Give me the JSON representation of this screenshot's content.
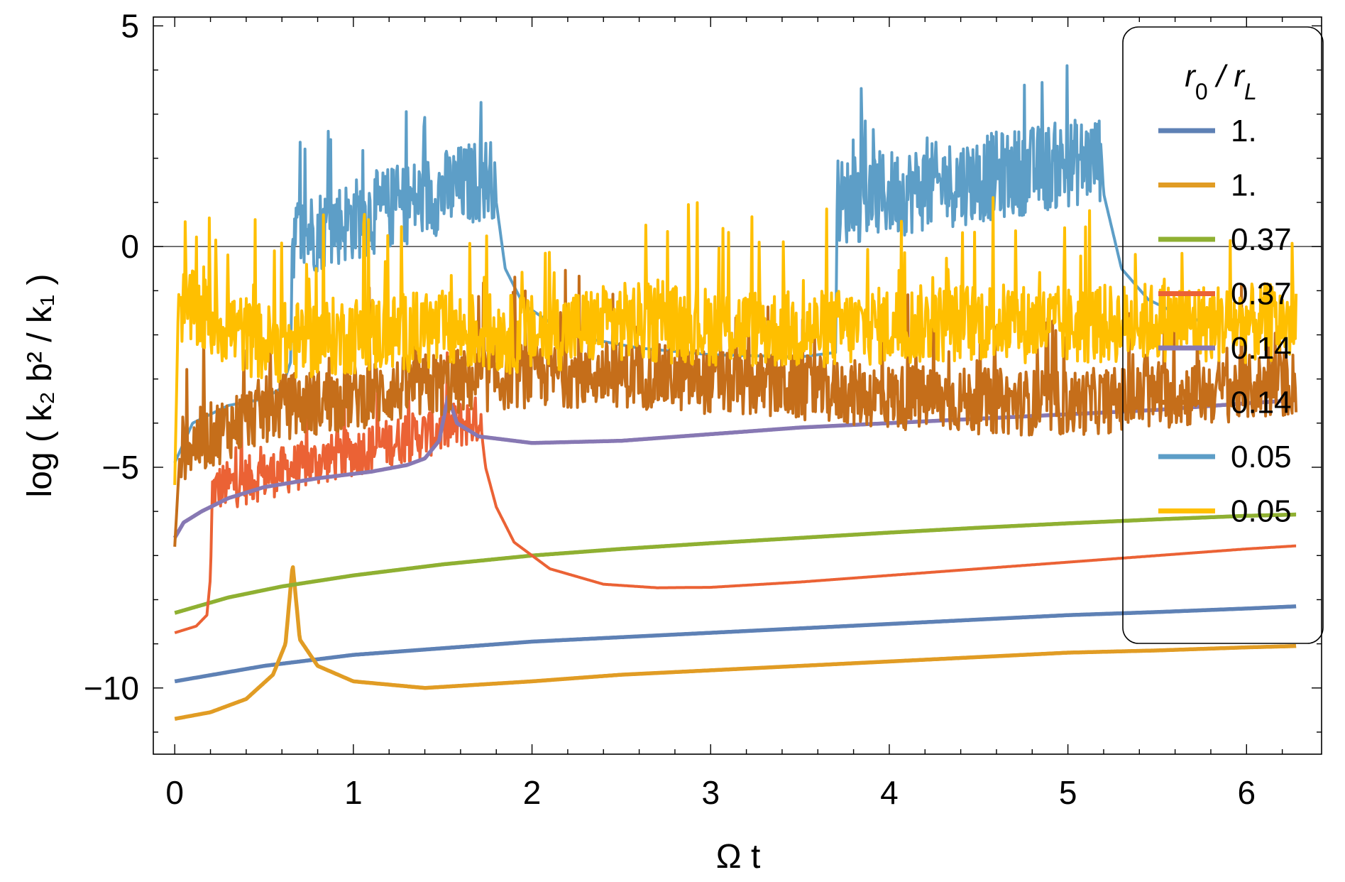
{
  "chart_data": {
    "type": "line",
    "title": "",
    "xlabel": "Ω t",
    "ylabel": "log ( k₂ b² / k₁ )",
    "xlim": [
      -0.12,
      6.42
    ],
    "ylim": [
      -11.5,
      5.2
    ],
    "x_ticks": [
      0,
      1,
      2,
      3,
      4,
      5,
      6
    ],
    "x_tick_labels": [
      "0",
      "1",
      "2",
      "3",
      "4",
      "5",
      "6"
    ],
    "y_ticks": [
      5,
      0,
      -5,
      -10
    ],
    "y_tick_labels": [
      "5",
      "0",
      "−5",
      "−10"
    ],
    "zero_line": true,
    "legend": {
      "title_main": "r",
      "title_sub1": "0",
      "title_sep": " / r",
      "title_sub2": "L",
      "position": "right",
      "entries": [
        {
          "label": "1.",
          "color": "#5E81B5"
        },
        {
          "label": "1.",
          "color": "#E19C24"
        },
        {
          "label": "0.37",
          "color": "#8FB032"
        },
        {
          "label": "0.37",
          "color": "#EB6235"
        },
        {
          "label": "0.14",
          "color": "#8778B3"
        },
        {
          "label": "0.14",
          "color": "#C56E1A"
        },
        {
          "label": "0.05",
          "color": "#5D9EC7"
        },
        {
          "label": "0.05",
          "color": "#FFBF00"
        }
      ]
    },
    "series": [
      {
        "name": "r0/rL = 1. (a)",
        "color": "#5E81B5",
        "kind": "smooth",
        "points": [
          [
            0,
            -9.85
          ],
          [
            0.5,
            -9.5
          ],
          [
            1,
            -9.25
          ],
          [
            1.5,
            -9.1
          ],
          [
            2,
            -8.95
          ],
          [
            2.5,
            -8.85
          ],
          [
            3,
            -8.75
          ],
          [
            3.5,
            -8.65
          ],
          [
            4,
            -8.55
          ],
          [
            4.5,
            -8.45
          ],
          [
            5,
            -8.35
          ],
          [
            5.5,
            -8.28
          ],
          [
            6,
            -8.2
          ],
          [
            6.28,
            -8.15
          ]
        ]
      },
      {
        "name": "r0/rL = 1. (b)",
        "color": "#E19C24",
        "kind": "smooth",
        "points": [
          [
            0,
            -10.7
          ],
          [
            0.2,
            -10.55
          ],
          [
            0.4,
            -10.25
          ],
          [
            0.55,
            -9.7
          ],
          [
            0.62,
            -9.0
          ],
          [
            0.66,
            -7.2
          ],
          [
            0.7,
            -8.9
          ],
          [
            0.8,
            -9.5
          ],
          [
            1,
            -9.85
          ],
          [
            1.4,
            -10.0
          ],
          [
            2,
            -9.85
          ],
          [
            2.5,
            -9.7
          ],
          [
            3,
            -9.6
          ],
          [
            3.5,
            -9.5
          ],
          [
            4,
            -9.4
          ],
          [
            4.5,
            -9.3
          ],
          [
            5,
            -9.2
          ],
          [
            5.5,
            -9.15
          ],
          [
            6,
            -9.08
          ],
          [
            6.28,
            -9.05
          ]
        ]
      },
      {
        "name": "r0/rL = 0.37 (a)",
        "color": "#8FB032",
        "kind": "smooth",
        "points": [
          [
            0,
            -8.3
          ],
          [
            0.3,
            -7.95
          ],
          [
            0.6,
            -7.7
          ],
          [
            1,
            -7.45
          ],
          [
            1.5,
            -7.2
          ],
          [
            2,
            -7.0
          ],
          [
            2.5,
            -6.85
          ],
          [
            3,
            -6.72
          ],
          [
            3.5,
            -6.6
          ],
          [
            4,
            -6.48
          ],
          [
            4.5,
            -6.37
          ],
          [
            5,
            -6.27
          ],
          [
            5.5,
            -6.18
          ],
          [
            6,
            -6.1
          ],
          [
            6.28,
            -6.07
          ]
        ]
      },
      {
        "name": "r0/rL = 0.37 (b)",
        "color": "#EB6235",
        "kind": "mixed",
        "points": [
          [
            0,
            -8.75
          ],
          [
            0.12,
            -8.6
          ],
          [
            0.18,
            -8.35
          ],
          [
            0.2,
            -7.5
          ],
          [
            0.21,
            -5.6
          ],
          [
            1.1,
            -4.0
          ],
          [
            1.7,
            -3.6
          ],
          [
            1.74,
            -5.0
          ],
          [
            1.8,
            -5.9
          ],
          [
            1.9,
            -6.7
          ],
          [
            2.1,
            -7.3
          ],
          [
            2.4,
            -7.65
          ],
          [
            2.7,
            -7.73
          ],
          [
            3,
            -7.72
          ],
          [
            3.5,
            -7.6
          ],
          [
            4,
            -7.45
          ],
          [
            4.5,
            -7.3
          ],
          [
            5,
            -7.15
          ],
          [
            5.5,
            -7.0
          ],
          [
            6,
            -6.85
          ],
          [
            6.28,
            -6.78
          ]
        ],
        "noise": {
          "from": 0.21,
          "to": 1.72,
          "start": -5.5,
          "end": -3.9,
          "amp": 0.55
        }
      },
      {
        "name": "r0/rL = 0.14 (a)",
        "color": "#8778B3",
        "kind": "smooth",
        "points": [
          [
            0,
            -6.6
          ],
          [
            0.05,
            -6.25
          ],
          [
            0.15,
            -6.0
          ],
          [
            0.3,
            -5.7
          ],
          [
            0.5,
            -5.45
          ],
          [
            0.8,
            -5.25
          ],
          [
            1.1,
            -5.1
          ],
          [
            1.3,
            -4.95
          ],
          [
            1.4,
            -4.8
          ],
          [
            1.48,
            -4.4
          ],
          [
            1.53,
            -3.4
          ],
          [
            1.58,
            -4.0
          ],
          [
            1.7,
            -4.3
          ],
          [
            2,
            -4.45
          ],
          [
            2.5,
            -4.4
          ],
          [
            3,
            -4.25
          ],
          [
            3.5,
            -4.1
          ],
          [
            4,
            -4.0
          ],
          [
            4.5,
            -3.9
          ],
          [
            5,
            -3.8
          ],
          [
            5.5,
            -3.7
          ],
          [
            6,
            -3.55
          ],
          [
            6.28,
            -3.48
          ]
        ]
      },
      {
        "name": "r0/rL = 0.14 (b)",
        "color": "#C56E1A",
        "kind": "noisy",
        "points": [
          [
            0,
            -6.8
          ],
          [
            0.03,
            -4.6
          ],
          [
            0.5,
            -3.7
          ],
          [
            1,
            -3.4
          ],
          [
            1.5,
            -3.1
          ],
          [
            2,
            -2.9
          ],
          [
            2.5,
            -2.9
          ],
          [
            3,
            -3.05
          ],
          [
            3.5,
            -3.2
          ],
          [
            4,
            -3.4
          ],
          [
            4.5,
            -3.5
          ],
          [
            5,
            -3.55
          ],
          [
            5.5,
            -3.4
          ],
          [
            6,
            -3.2
          ],
          [
            6.28,
            -3.1
          ]
        ],
        "noise": {
          "from": 0.03,
          "to": 6.28,
          "amp": 0.75
        }
      },
      {
        "name": "r0/rL = 0.05 (a)",
        "color": "#5D9EC7",
        "kind": "mixed",
        "points": [
          [
            0,
            -4.9
          ],
          [
            0.1,
            -4.0
          ],
          [
            0.3,
            -3.6
          ],
          [
            0.5,
            -3.45
          ],
          [
            0.6,
            -3.2
          ],
          [
            0.65,
            -2.6
          ],
          [
            0.66,
            1.0
          ],
          [
            1.79,
            2.0
          ],
          [
            1.8,
            1.0
          ],
          [
            1.85,
            -0.5
          ],
          [
            1.95,
            -1.3
          ],
          [
            2.2,
            -2.0
          ],
          [
            2.6,
            -2.3
          ],
          [
            3,
            -2.45
          ],
          [
            3.5,
            -2.5
          ],
          [
            3.7,
            -2.4
          ],
          [
            3.71,
            1.6
          ],
          [
            5.18,
            2.6
          ],
          [
            5.2,
            1.2
          ],
          [
            5.3,
            -0.5
          ],
          [
            5.45,
            -1.2
          ],
          [
            5.6,
            -1.5
          ],
          [
            5.75,
            -1.7
          ]
        ],
        "noise": [
          {
            "from": 0.66,
            "to": 1.79,
            "start": 0.2,
            "end": 1.6,
            "amp": 0.95
          },
          {
            "from": 3.71,
            "to": 5.18,
            "start": 1.0,
            "end": 2.0,
            "amp": 1.0
          }
        ]
      },
      {
        "name": "r0/rL = 0.05 (b)",
        "color": "#FFBF00",
        "kind": "noisy",
        "points": [
          [
            0,
            -5.4
          ],
          [
            0.02,
            -1.3
          ],
          [
            0.5,
            -2.2
          ],
          [
            1,
            -2.0
          ],
          [
            1.5,
            -1.9
          ],
          [
            2,
            -2.0
          ],
          [
            2.5,
            -1.7
          ],
          [
            3,
            -1.8
          ],
          [
            3.5,
            -1.9
          ],
          [
            4,
            -1.8
          ],
          [
            4.5,
            -1.7
          ],
          [
            5,
            -1.8
          ],
          [
            5.5,
            -1.7
          ],
          [
            6,
            -1.75
          ],
          [
            6.28,
            -1.7
          ]
        ],
        "noise": {
          "from": 0.02,
          "to": 6.28,
          "amp": 0.9
        }
      }
    ]
  }
}
